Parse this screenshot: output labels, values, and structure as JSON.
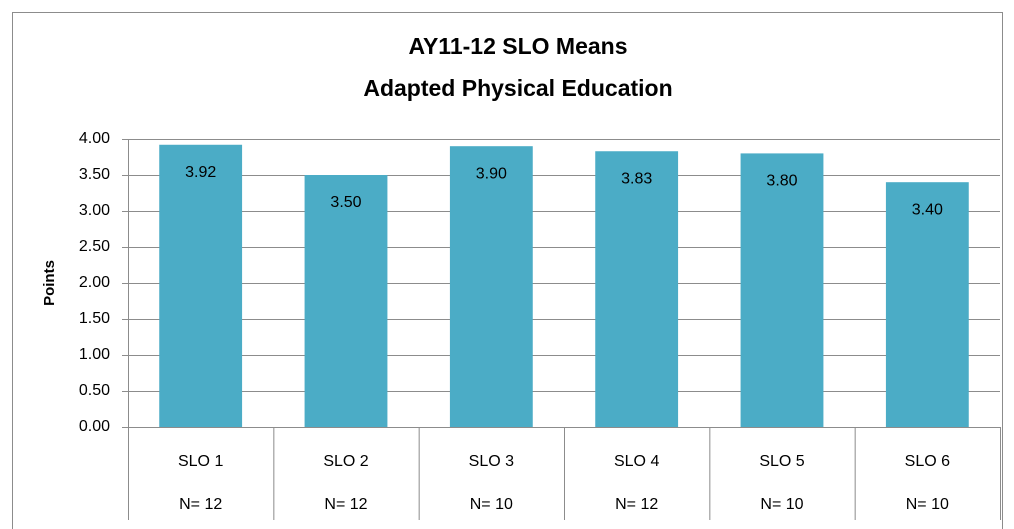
{
  "chart_data": {
    "type": "bar",
    "title": "AY11-12 SLO Means",
    "subtitle": "Adapted Physical Education",
    "y_label": "Points",
    "categories": [
      "SLO 1",
      "SLO 2",
      "SLO 3",
      "SLO 4",
      "SLO 5",
      "SLO 6"
    ],
    "sub_categories": [
      "N= 12",
      "N= 12",
      "N= 10",
      "N= 12",
      "N= 10",
      "N= 10"
    ],
    "values": [
      3.92,
      3.5,
      3.9,
      3.83,
      3.8,
      3.4
    ],
    "value_labels": [
      "3.92",
      "3.50",
      "3.90",
      "3.83",
      "3.80",
      "3.40"
    ],
    "color": "#4bacc6",
    "ylim": [
      0,
      4
    ],
    "yticks": [
      {
        "value": 0,
        "label": "0.00"
      },
      {
        "value": 0.5,
        "label": "0.50"
      },
      {
        "value": 1,
        "label": "1.00"
      },
      {
        "value": 1.5,
        "label": "1.50"
      },
      {
        "value": 2,
        "label": "2.00"
      },
      {
        "value": 2.5,
        "label": "2.50"
      },
      {
        "value": 3,
        "label": "3.00"
      },
      {
        "value": 3.5,
        "label": "3.50"
      },
      {
        "value": 4,
        "label": "4.00"
      }
    ],
    "grid": true
  }
}
